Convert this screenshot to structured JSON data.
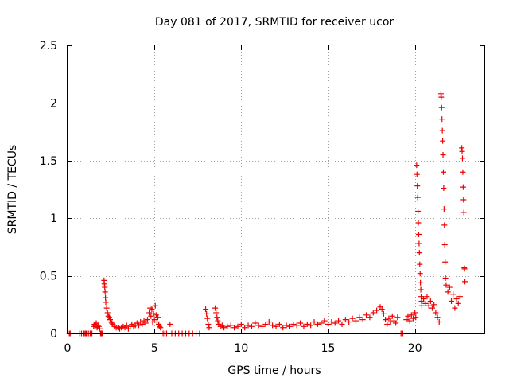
{
  "chart_data": {
    "type": "scatter",
    "title": "Day 081 of 2017, SRMTID for receiver ucor",
    "xlabel": "GPS time / hours",
    "ylabel": "SRMTID / TECUs",
    "xlim": [
      0,
      24
    ],
    "ylim": [
      0,
      2.5
    ],
    "xticks": [
      0,
      5,
      10,
      15,
      20
    ],
    "yticks": [
      0,
      0.5,
      1,
      1.5,
      2,
      2.5
    ],
    "xtick_labels": [
      "0",
      "5",
      "10",
      "15",
      "20"
    ],
    "ytick_labels": [
      "0",
      "0.5",
      "1",
      "1.5",
      "2",
      "2.5"
    ],
    "grid": true,
    "marker": "+",
    "series": [
      {
        "name": "SRMTID",
        "color": "#ee0000",
        "points": [
          [
            0.1,
            0.0
          ],
          [
            0.15,
            0.0
          ],
          [
            0.7,
            0.0
          ],
          [
            0.8,
            0.0
          ],
          [
            0.9,
            0.0
          ],
          [
            1.0,
            0.0
          ],
          [
            1.05,
            0.0
          ],
          [
            1.1,
            0.0
          ],
          [
            1.2,
            0.0
          ],
          [
            1.3,
            0.0
          ],
          [
            1.4,
            0.0
          ],
          [
            1.5,
            0.06
          ],
          [
            1.55,
            0.08
          ],
          [
            1.6,
            0.07
          ],
          [
            1.65,
            0.09
          ],
          [
            1.7,
            0.05
          ],
          [
            1.75,
            0.07
          ],
          [
            1.8,
            0.06
          ],
          [
            1.85,
            0.04
          ],
          [
            1.9,
            0.0
          ],
          [
            1.95,
            0.0
          ],
          [
            2.0,
            0.0
          ],
          [
            2.1,
            0.46
          ],
          [
            2.12,
            0.43
          ],
          [
            2.14,
            0.4
          ],
          [
            2.16,
            0.36
          ],
          [
            2.18,
            0.31
          ],
          [
            2.2,
            0.27
          ],
          [
            2.25,
            0.22
          ],
          [
            2.3,
            0.18
          ],
          [
            2.35,
            0.15
          ],
          [
            2.4,
            0.14
          ],
          [
            2.45,
            0.12
          ],
          [
            2.5,
            0.1
          ],
          [
            2.55,
            0.09
          ],
          [
            2.6,
            0.08
          ],
          [
            2.7,
            0.06
          ],
          [
            2.8,
            0.05
          ],
          [
            2.9,
            0.05
          ],
          [
            3.0,
            0.04
          ],
          [
            3.1,
            0.05
          ],
          [
            3.2,
            0.06
          ],
          [
            3.3,
            0.05
          ],
          [
            3.4,
            0.07
          ],
          [
            3.5,
            0.04
          ],
          [
            3.6,
            0.06
          ],
          [
            3.7,
            0.08
          ],
          [
            3.8,
            0.06
          ],
          [
            3.9,
            0.07
          ],
          [
            4.0,
            0.09
          ],
          [
            4.1,
            0.07
          ],
          [
            4.2,
            0.1
          ],
          [
            4.3,
            0.08
          ],
          [
            4.4,
            0.11
          ],
          [
            4.5,
            0.09
          ],
          [
            4.6,
            0.12
          ],
          [
            4.7,
            0.18
          ],
          [
            4.75,
            0.22
          ],
          [
            4.8,
            0.15
          ],
          [
            4.85,
            0.21
          ],
          [
            4.9,
            0.1
          ],
          [
            4.95,
            0.17
          ],
          [
            5.0,
            0.12
          ],
          [
            5.05,
            0.24
          ],
          [
            5.1,
            0.16
          ],
          [
            5.15,
            0.1
          ],
          [
            5.2,
            0.14
          ],
          [
            5.25,
            0.08
          ],
          [
            5.3,
            0.06
          ],
          [
            5.35,
            0.05
          ],
          [
            5.5,
            0.0
          ],
          [
            5.6,
            0.0
          ],
          [
            5.7,
            0.0
          ],
          [
            5.9,
            0.08
          ],
          [
            6.0,
            0.0
          ],
          [
            6.2,
            0.0
          ],
          [
            6.4,
            0.0
          ],
          [
            6.6,
            0.0
          ],
          [
            6.8,
            0.0
          ],
          [
            7.0,
            0.0
          ],
          [
            7.2,
            0.0
          ],
          [
            7.4,
            0.0
          ],
          [
            7.6,
            0.0
          ],
          [
            7.95,
            0.21
          ],
          [
            8.0,
            0.17
          ],
          [
            8.05,
            0.13
          ],
          [
            8.1,
            0.08
          ],
          [
            8.15,
            0.05
          ],
          [
            8.5,
            0.22
          ],
          [
            8.55,
            0.18
          ],
          [
            8.6,
            0.14
          ],
          [
            8.65,
            0.11
          ],
          [
            8.7,
            0.08
          ],
          [
            8.8,
            0.06
          ],
          [
            8.9,
            0.07
          ],
          [
            9.0,
            0.05
          ],
          [
            9.2,
            0.06
          ],
          [
            9.4,
            0.07
          ],
          [
            9.6,
            0.05
          ],
          [
            9.8,
            0.06
          ],
          [
            10.0,
            0.08
          ],
          [
            10.2,
            0.05
          ],
          [
            10.4,
            0.07
          ],
          [
            10.6,
            0.06
          ],
          [
            10.8,
            0.09
          ],
          [
            11.0,
            0.07
          ],
          [
            11.2,
            0.06
          ],
          [
            11.4,
            0.08
          ],
          [
            11.6,
            0.1
          ],
          [
            11.8,
            0.07
          ],
          [
            12.0,
            0.06
          ],
          [
            12.2,
            0.08
          ],
          [
            12.4,
            0.05
          ],
          [
            12.6,
            0.07
          ],
          [
            12.8,
            0.06
          ],
          [
            13.0,
            0.08
          ],
          [
            13.2,
            0.07
          ],
          [
            13.4,
            0.09
          ],
          [
            13.6,
            0.06
          ],
          [
            13.8,
            0.08
          ],
          [
            14.0,
            0.07
          ],
          [
            14.2,
            0.1
          ],
          [
            14.4,
            0.08
          ],
          [
            14.6,
            0.09
          ],
          [
            14.8,
            0.11
          ],
          [
            15.0,
            0.08
          ],
          [
            15.2,
            0.1
          ],
          [
            15.4,
            0.09
          ],
          [
            15.6,
            0.11
          ],
          [
            15.8,
            0.08
          ],
          [
            16.0,
            0.12
          ],
          [
            16.2,
            0.1
          ],
          [
            16.4,
            0.13
          ],
          [
            16.6,
            0.11
          ],
          [
            16.8,
            0.14
          ],
          [
            17.0,
            0.12
          ],
          [
            17.2,
            0.16
          ],
          [
            17.4,
            0.14
          ],
          [
            17.6,
            0.18
          ],
          [
            17.8,
            0.2
          ],
          [
            18.0,
            0.23
          ],
          [
            18.1,
            0.21
          ],
          [
            18.2,
            0.17
          ],
          [
            18.3,
            0.12
          ],
          [
            18.4,
            0.08
          ],
          [
            18.5,
            0.13
          ],
          [
            18.6,
            0.1
          ],
          [
            18.7,
            0.15
          ],
          [
            18.8,
            0.11
          ],
          [
            18.9,
            0.09
          ],
          [
            19.0,
            0.14
          ],
          [
            19.2,
            0.0
          ],
          [
            19.3,
            0.0
          ],
          [
            19.5,
            0.12
          ],
          [
            19.6,
            0.15
          ],
          [
            19.7,
            0.11
          ],
          [
            19.8,
            0.16
          ],
          [
            19.9,
            0.13
          ],
          [
            20.0,
            0.18
          ],
          [
            20.05,
            0.14
          ],
          [
            20.1,
            1.46
          ],
          [
            20.12,
            1.38
          ],
          [
            20.14,
            1.28
          ],
          [
            20.16,
            1.18
          ],
          [
            20.18,
            1.06
          ],
          [
            20.2,
            0.96
          ],
          [
            20.22,
            0.86
          ],
          [
            20.24,
            0.78
          ],
          [
            20.26,
            0.7
          ],
          [
            20.28,
            0.6
          ],
          [
            20.3,
            0.52
          ],
          [
            20.32,
            0.44
          ],
          [
            20.34,
            0.38
          ],
          [
            20.36,
            0.32
          ],
          [
            20.38,
            0.28
          ],
          [
            20.4,
            0.24
          ],
          [
            20.5,
            0.3
          ],
          [
            20.6,
            0.26
          ],
          [
            20.7,
            0.32
          ],
          [
            20.8,
            0.24
          ],
          [
            20.9,
            0.28
          ],
          [
            21.0,
            0.22
          ],
          [
            21.1,
            0.25
          ],
          [
            21.2,
            0.18
          ],
          [
            21.3,
            0.14
          ],
          [
            21.4,
            0.1
          ],
          [
            21.5,
            2.08
          ],
          [
            21.52,
            2.05
          ],
          [
            21.54,
            1.96
          ],
          [
            21.56,
            1.86
          ],
          [
            21.58,
            1.76
          ],
          [
            21.6,
            1.67
          ],
          [
            21.62,
            1.55
          ],
          [
            21.64,
            1.4
          ],
          [
            21.66,
            1.26
          ],
          [
            21.68,
            1.08
          ],
          [
            21.7,
            0.94
          ],
          [
            21.72,
            0.77
          ],
          [
            21.74,
            0.62
          ],
          [
            21.76,
            0.48
          ],
          [
            21.8,
            0.42
          ],
          [
            21.9,
            0.36
          ],
          [
            22.0,
            0.4
          ],
          [
            22.1,
            0.28
          ],
          [
            22.2,
            0.34
          ],
          [
            22.3,
            0.22
          ],
          [
            22.4,
            0.3
          ],
          [
            22.5,
            0.26
          ],
          [
            22.6,
            0.32
          ],
          [
            22.7,
            1.61
          ],
          [
            22.72,
            1.58
          ],
          [
            22.74,
            1.52
          ],
          [
            22.76,
            1.4
          ],
          [
            22.78,
            1.27
          ],
          [
            22.8,
            1.16
          ],
          [
            22.82,
            1.05
          ],
          [
            22.84,
            0.57
          ],
          [
            22.86,
            0.56
          ],
          [
            22.88,
            0.45
          ]
        ]
      }
    ]
  }
}
